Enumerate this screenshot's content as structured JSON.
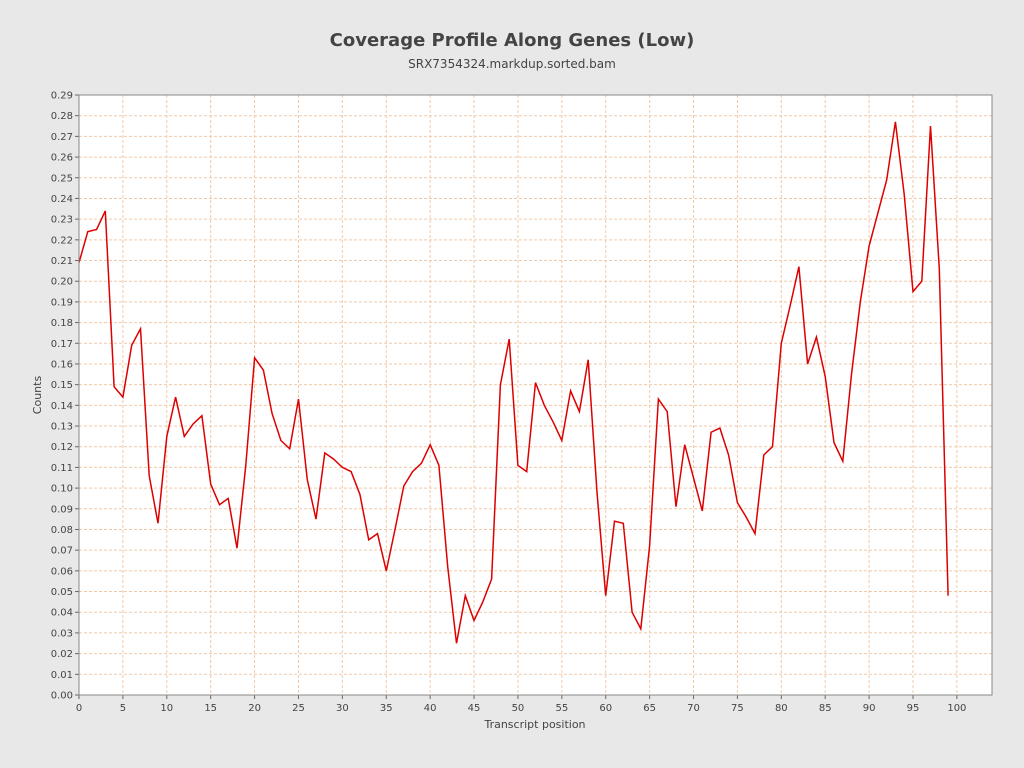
{
  "chart_data": {
    "type": "line",
    "title": "Coverage Profile Along Genes (Low)",
    "subtitle": "SRX7354324.markdup.sorted.bam",
    "xlabel": "Transcript position",
    "ylabel": "Counts",
    "xlim": [
      0,
      104
    ],
    "ylim": [
      0,
      0.29
    ],
    "xticks": [
      "0",
      "5",
      "10",
      "15",
      "20",
      "25",
      "30",
      "35",
      "40",
      "45",
      "50",
      "55",
      "60",
      "65",
      "70",
      "75",
      "80",
      "85",
      "90",
      "95",
      "100"
    ],
    "yticks": [
      "0.00",
      "0.01",
      "0.02",
      "0.03",
      "0.04",
      "0.05",
      "0.06",
      "0.07",
      "0.08",
      "0.09",
      "0.10",
      "0.11",
      "0.12",
      "0.13",
      "0.14",
      "0.15",
      "0.16",
      "0.17",
      "0.18",
      "0.19",
      "0.20",
      "0.21",
      "0.22",
      "0.23",
      "0.24",
      "0.25",
      "0.26",
      "0.27",
      "0.28",
      "0.29"
    ],
    "grid": true,
    "line_color": "#dd0000",
    "x": [
      0,
      1,
      2,
      3,
      4,
      5,
      6,
      7,
      8,
      9,
      10,
      11,
      12,
      13,
      14,
      15,
      16,
      17,
      18,
      19,
      20,
      21,
      22,
      23,
      24,
      25,
      26,
      27,
      28,
      29,
      30,
      31,
      32,
      33,
      34,
      35,
      36,
      37,
      38,
      39,
      40,
      41,
      42,
      43,
      44,
      45,
      46,
      47,
      48,
      49,
      50,
      51,
      52,
      53,
      54,
      55,
      56,
      57,
      58,
      59,
      60,
      61,
      62,
      63,
      64,
      65,
      66,
      67,
      68,
      69,
      70,
      71,
      72,
      73,
      74,
      75,
      76,
      77,
      78,
      79,
      80,
      81,
      82,
      83,
      84,
      85,
      86,
      87,
      88,
      89,
      90,
      91,
      92,
      93,
      94,
      95,
      96,
      97,
      98,
      99
    ],
    "y": [
      0.209,
      0.224,
      0.225,
      0.234,
      0.149,
      0.144,
      0.169,
      0.177,
      0.106,
      0.083,
      0.125,
      0.144,
      0.125,
      0.131,
      0.135,
      0.102,
      0.092,
      0.095,
      0.071,
      0.111,
      0.163,
      0.157,
      0.136,
      0.123,
      0.119,
      0.143,
      0.104,
      0.085,
      0.117,
      0.114,
      0.11,
      0.108,
      0.097,
      0.075,
      0.078,
      0.06,
      0.08,
      0.101,
      0.108,
      0.112,
      0.121,
      0.111,
      0.062,
      0.025,
      0.048,
      0.036,
      0.045,
      0.056,
      0.15,
      0.172,
      0.111,
      0.108,
      0.151,
      0.14,
      0.132,
      0.123,
      0.147,
      0.137,
      0.162,
      0.098,
      0.048,
      0.084,
      0.083,
      0.04,
      0.032,
      0.072,
      0.143,
      0.137,
      0.091,
      0.121,
      0.105,
      0.089,
      0.127,
      0.129,
      0.116,
      0.093,
      0.086,
      0.078,
      0.116,
      0.12,
      0.17,
      0.188,
      0.207,
      0.16,
      0.173,
      0.154,
      0.122,
      0.113,
      0.155,
      0.19,
      0.217,
      0.233,
      0.249,
      0.277,
      0.242,
      0.195,
      0.2,
      0.275,
      0.206,
      0.048
    ]
  }
}
